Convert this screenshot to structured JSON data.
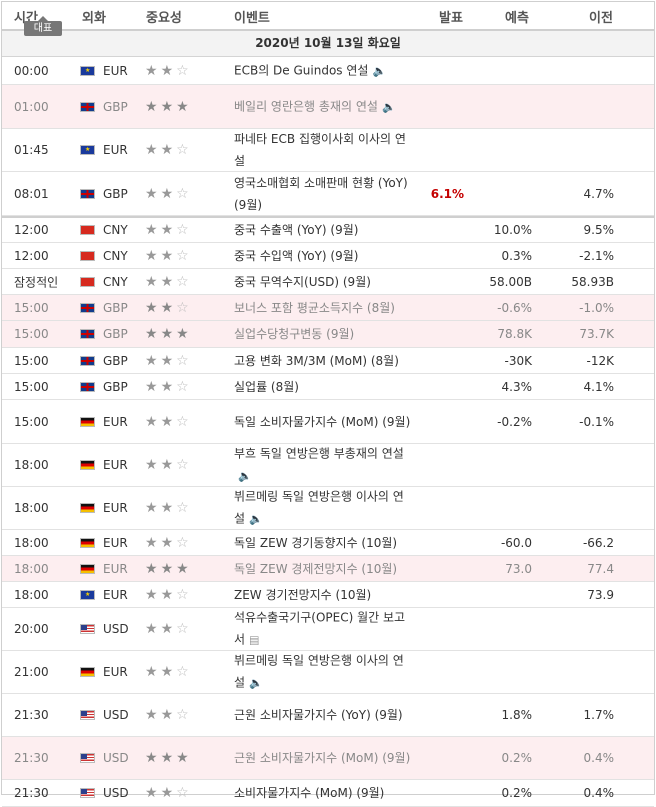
{
  "header": {
    "time": "시간",
    "currency": "외화",
    "importance": "중요성",
    "event": "이벤트",
    "actual": "발표",
    "forecast": "예측",
    "previous": "이전",
    "tooltip": "대표"
  },
  "date": "2020년 10월 13일 화요일",
  "rows": [
    {
      "time": "00:00",
      "flag": "eu",
      "cur": "EUR",
      "stars": 2,
      "event": "ECB의 De Guindos 연설",
      "speech": true,
      "actual": "",
      "forecast": "",
      "previous": "",
      "hl": false,
      "h": 28
    },
    {
      "time": "01:00",
      "flag": "gb",
      "cur": "GBP",
      "stars": 3,
      "event": "베일리 영란은행 총재의 연설",
      "speech": true,
      "actual": "",
      "forecast": "",
      "previous": "",
      "hl": true,
      "h": 44
    },
    {
      "time": "01:45",
      "flag": "eu",
      "cur": "EUR",
      "stars": 2,
      "event": "파네타 ECB 집행이사회 이사의 연설",
      "speech": false,
      "actual": "",
      "forecast": "",
      "previous": "",
      "hl": false,
      "h": 43
    },
    {
      "time": "08:01",
      "flag": "gb",
      "cur": "GBP",
      "stars": 2,
      "event": "영국소매협회 소매판매 현황 (YoY) (9월)",
      "speech": false,
      "actual": "6.1%",
      "forecast": "",
      "previous": "4.7%",
      "hl": false,
      "h": 44
    },
    {
      "time": "12:00",
      "flag": "cn",
      "cur": "CNY",
      "stars": 2,
      "event": "중국 수출액 (YoY) (9월)",
      "speech": false,
      "actual": "",
      "forecast": "10.0%",
      "previous": "9.5%",
      "hl": false,
      "h": 27,
      "thick": true
    },
    {
      "time": "12:00",
      "flag": "cn",
      "cur": "CNY",
      "stars": 2,
      "event": "중국 수입액 (YoY) (9월)",
      "speech": false,
      "actual": "",
      "forecast": "0.3%",
      "previous": "-2.1%",
      "hl": false,
      "h": 26
    },
    {
      "time": "잠정적인",
      "flag": "cn",
      "cur": "CNY",
      "stars": 2,
      "event": "중국 무역수지(USD) (9월)",
      "speech": false,
      "actual": "",
      "forecast": "58.00B",
      "previous": "58.93B",
      "hl": false,
      "h": 26
    },
    {
      "time": "15:00",
      "flag": "gb",
      "cur": "GBP",
      "stars": 2,
      "event": "보너스 포함 평균소득지수 (8월)",
      "speech": false,
      "actual": "",
      "forecast": "-0.6%",
      "previous": "-1.0%",
      "hl": true,
      "h": 26
    },
    {
      "time": "15:00",
      "flag": "gb",
      "cur": "GBP",
      "stars": 3,
      "event": "실업수당청구변동 (9월)",
      "speech": false,
      "actual": "",
      "forecast": "78.8K",
      "previous": "73.7K",
      "hl": true,
      "h": 27
    },
    {
      "time": "15:00",
      "flag": "gb",
      "cur": "GBP",
      "stars": 2,
      "event": "고용 변화 3M/3M (MoM) (8월)",
      "speech": false,
      "actual": "",
      "forecast": "-30K",
      "previous": "-12K",
      "hl": false,
      "h": 26
    },
    {
      "time": "15:00",
      "flag": "gb",
      "cur": "GBP",
      "stars": 2,
      "event": "실업률 (8월)",
      "speech": false,
      "actual": "",
      "forecast": "4.3%",
      "previous": "4.1%",
      "hl": false,
      "h": 26
    },
    {
      "time": "15:00",
      "flag": "de",
      "cur": "EUR",
      "stars": 2,
      "event": "독일 소비자물가지수 (MoM) (9월)",
      "speech": false,
      "actual": "",
      "forecast": "-0.2%",
      "previous": "-0.1%",
      "hl": false,
      "h": 44
    },
    {
      "time": "18:00",
      "flag": "de",
      "cur": "EUR",
      "stars": 2,
      "event": "부흐 독일 연방은행 부총재의 연설",
      "speech": true,
      "actual": "",
      "forecast": "",
      "previous": "",
      "hl": false,
      "h": 43
    },
    {
      "time": "18:00",
      "flag": "de",
      "cur": "EUR",
      "stars": 2,
      "event": "뷔르메링 독일 연방은행 이사의 연설",
      "speech": true,
      "actual": "",
      "forecast": "",
      "previous": "",
      "hl": false,
      "h": 43
    },
    {
      "time": "18:00",
      "flag": "de",
      "cur": "EUR",
      "stars": 2,
      "event": "독일 ZEW 경기동향지수 (10월)",
      "speech": false,
      "actual": "",
      "forecast": "-60.0",
      "previous": "-66.2",
      "hl": false,
      "h": 26
    },
    {
      "time": "18:00",
      "flag": "de",
      "cur": "EUR",
      "stars": 3,
      "event": "독일 ZEW 경제전망지수 (10월)",
      "speech": false,
      "actual": "",
      "forecast": "73.0",
      "previous": "77.4",
      "hl": true,
      "h": 26
    },
    {
      "time": "18:00",
      "flag": "eu",
      "cur": "EUR",
      "stars": 2,
      "event": "ZEW 경기전망지수 (10월)",
      "speech": false,
      "actual": "",
      "forecast": "",
      "previous": "73.9",
      "hl": false,
      "h": 26
    },
    {
      "time": "20:00",
      "flag": "us",
      "cur": "USD",
      "stars": 2,
      "event": "석유수출국기구(OPEC) 월간 보고서",
      "speech": false,
      "doc": true,
      "actual": "",
      "forecast": "",
      "previous": "",
      "hl": false,
      "h": 43
    },
    {
      "time": "21:00",
      "flag": "de",
      "cur": "EUR",
      "stars": 2,
      "event": "뷔르메링 독일 연방은행 이사의 연설",
      "speech": true,
      "actual": "",
      "forecast": "",
      "previous": "",
      "hl": false,
      "h": 43
    },
    {
      "time": "21:30",
      "flag": "us",
      "cur": "USD",
      "stars": 2,
      "event": "근원 소비자물가지수 (YoY) (9월)",
      "speech": false,
      "actual": "",
      "forecast": "1.8%",
      "previous": "1.7%",
      "hl": false,
      "h": 43
    },
    {
      "time": "21:30",
      "flag": "us",
      "cur": "USD",
      "stars": 3,
      "event": "근원 소비자물가지수 (MoM) (9월)",
      "speech": false,
      "actual": "",
      "forecast": "0.2%",
      "previous": "0.4%",
      "hl": true,
      "h": 43
    },
    {
      "time": "21:30",
      "flag": "us",
      "cur": "USD",
      "stars": 2,
      "event": "소비자물가지수 (MoM) (9월)",
      "speech": false,
      "actual": "",
      "forecast": "0.2%",
      "previous": "0.4%",
      "hl": false,
      "h": 27
    }
  ]
}
